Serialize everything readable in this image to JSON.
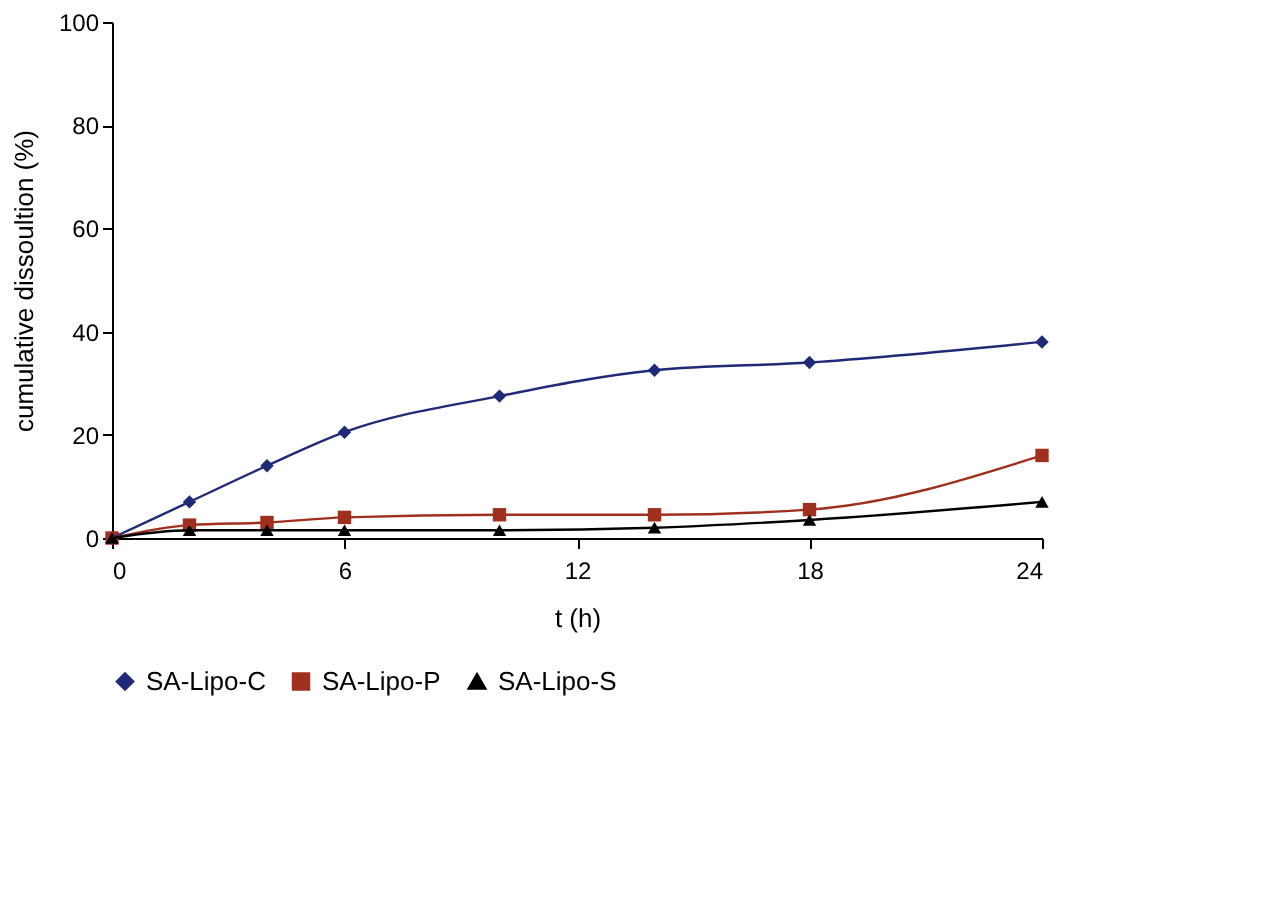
{
  "chart_data": {
    "type": "line",
    "xlabel": "t (h)",
    "ylabel": "cumulative dissoultion (%)",
    "x": [
      0,
      2,
      4,
      6,
      10,
      14,
      18,
      24
    ],
    "series": [
      {
        "name": "SA-Lipo-C",
        "color": "#1f2a78",
        "marker": "diamond",
        "values": [
          0,
          7,
          14,
          20.5,
          27.5,
          32.5,
          34,
          38
        ]
      },
      {
        "name": "SA-Lipo-P",
        "color": "#a0301e",
        "marker": "square",
        "values": [
          0,
          2.5,
          3,
          4,
          4.5,
          4.5,
          5.5,
          16
        ]
      },
      {
        "name": "SA-Lipo-S",
        "color": "#000000",
        "marker": "triangle",
        "values": [
          0,
          1.5,
          1.5,
          1.5,
          1.5,
          2,
          3.5,
          7
        ]
      }
    ],
    "xlim": [
      0,
      24
    ],
    "xticks": [
      0,
      6,
      12,
      18,
      24
    ],
    "ylim": [
      0,
      100
    ],
    "yticks": [
      0,
      20,
      40,
      60,
      80,
      100
    ],
    "grid": false,
    "legend": "bottom",
    "line_style": "solid"
  }
}
